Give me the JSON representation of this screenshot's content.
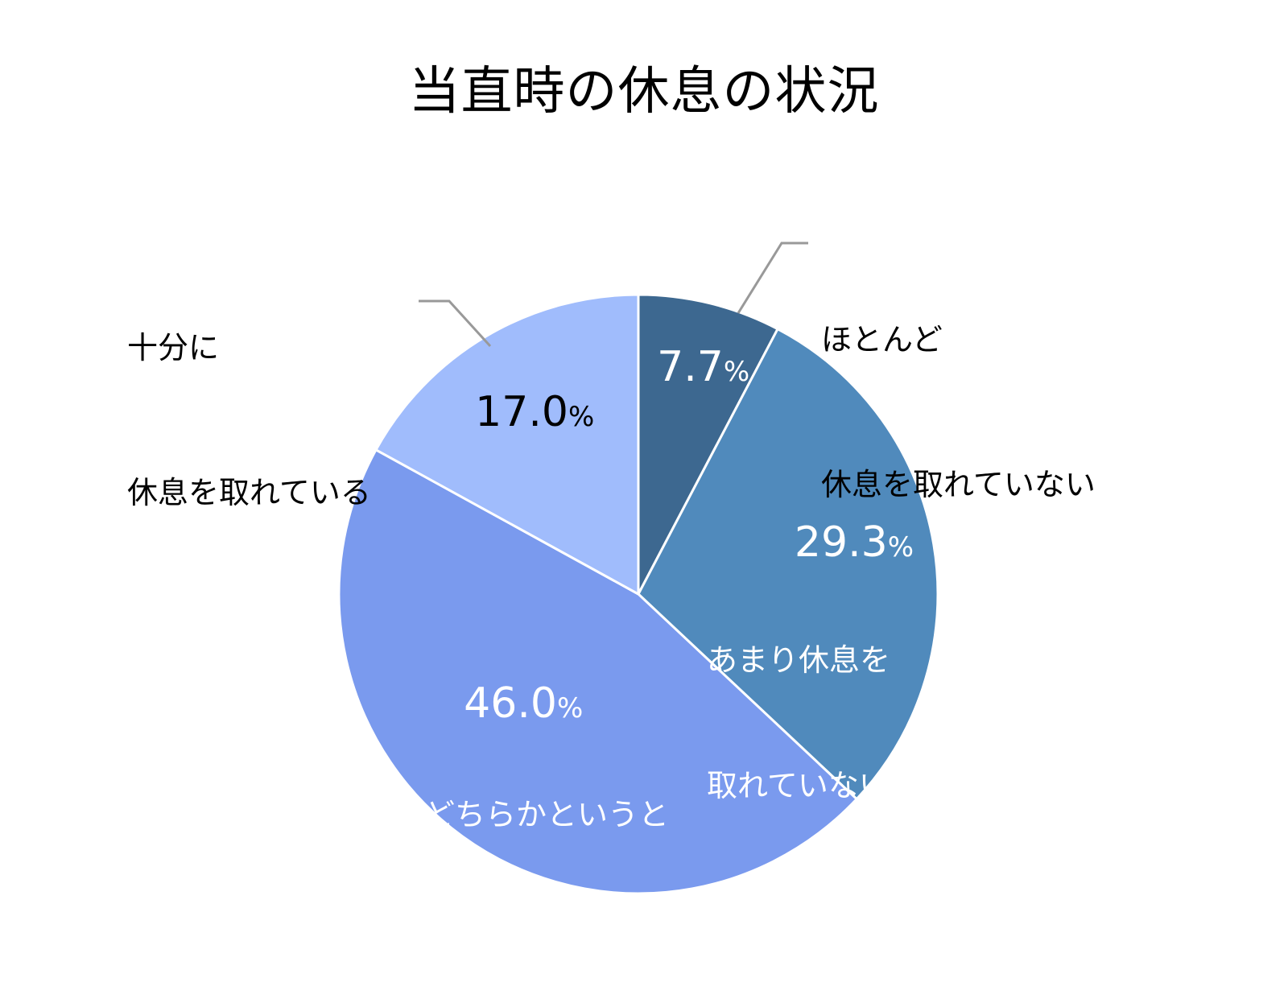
{
  "title": "当直時の休息の状況",
  "chart_data": {
    "type": "pie",
    "title": "当直時の休息の状況",
    "start_angle_deg": 0,
    "direction": "clockwise",
    "categories": [
      "ほとんど休息を取れていない",
      "あまり休息を取れていない",
      "どちらかというと休息を取れている",
      "十分に休息を取れている"
    ],
    "values": [
      7.7,
      29.3,
      46.0,
      17.0
    ],
    "unit": "%",
    "colors": [
      "#3D6890",
      "#508ABC",
      "#7A9AEE",
      "#A0BCFC"
    ],
    "legend": "none (data labels on slices / leader lines)"
  },
  "labels": {
    "s0": {
      "value": "7.7",
      "unit": "%",
      "line1": "ほとんど",
      "line2": "休息を取れていない"
    },
    "s1": {
      "value": "29.3",
      "unit": "%",
      "line1": "あまり休息を",
      "line2": "取れていない"
    },
    "s2": {
      "value": "46.0",
      "unit": "%",
      "line1": "どちらかというと",
      "line2": "休息を取れている"
    },
    "s3": {
      "value": "17.0",
      "unit": "%",
      "line1": "十分に",
      "line2": "休息を取れている"
    }
  }
}
